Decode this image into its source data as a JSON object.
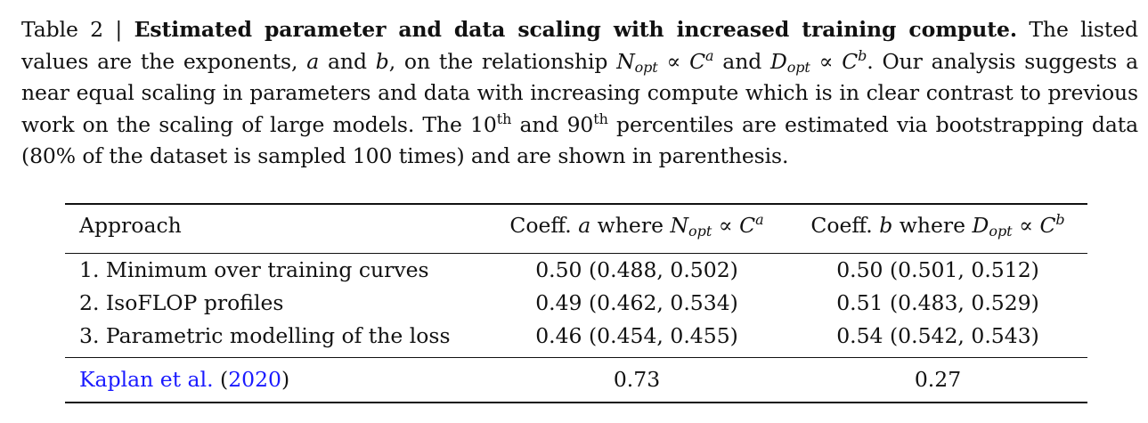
{
  "caption": {
    "label": "Table 2 | ",
    "title": "Estimated parameter and data scaling with increased training compute.",
    "text_1": " The listed values are the exponents, ",
    "var_a": "a",
    "text_2": " and ",
    "var_b": "b",
    "text_3": ", on the relationship ",
    "rel1_n": "N",
    "rel1_sub": "opt",
    "rel1_mid": " ∝ ",
    "rel1_c": "C",
    "rel1_sup": "a",
    "text_4": " and ",
    "rel2_d": "D",
    "rel2_sub": "opt",
    "rel2_mid": " ∝ ",
    "rel2_c": "C",
    "rel2_sup": "b",
    "text_5": ". Our analysis suggests a near equal scaling in parameters and data with increasing compute which is in clear contrast to previous work on the scaling of large models. The 10",
    "th1": "th",
    "text_6": " and 90",
    "th2": "th",
    "text_7": " percentiles are estimated via bootstrapping data (80% of the dataset is sampled 100 times) and are shown in parenthesis."
  },
  "table": {
    "header": {
      "approach": "Approach",
      "coeff_a_prefix": "Coeff. ",
      "coeff_a_var": "a",
      "coeff_a_where": " where ",
      "coeff_a_n": "N",
      "coeff_a_sub": "opt",
      "coeff_a_prop": " ∝ ",
      "coeff_a_c": "C",
      "coeff_a_sup": "a",
      "coeff_b_prefix": "Coeff. ",
      "coeff_b_var": "b",
      "coeff_b_where": " where ",
      "coeff_b_d": "D",
      "coeff_b_sub": "opt",
      "coeff_b_prop": " ∝ ",
      "coeff_b_c": "C",
      "coeff_b_sup": "b"
    },
    "rows": [
      {
        "approach": "1. Minimum over training curves",
        "a": "0.50 (0.488, 0.502)",
        "b": "0.50 (0.501, 0.512)"
      },
      {
        "approach": "2. IsoFLOP profiles",
        "a": "0.49 (0.462, 0.534)",
        "b": "0.51 (0.483, 0.529)"
      },
      {
        "approach": "3. Parametric modelling of the loss",
        "a": "0.46 (0.454, 0.455)",
        "b": "0.54 (0.542, 0.543)"
      }
    ],
    "reference": {
      "author": "Kaplan et al.",
      "open": " (",
      "year": "2020",
      "close": ")",
      "a": "0.73",
      "b": "0.27"
    }
  },
  "colors": {
    "text": "#111111",
    "link": "#1a1aff"
  }
}
